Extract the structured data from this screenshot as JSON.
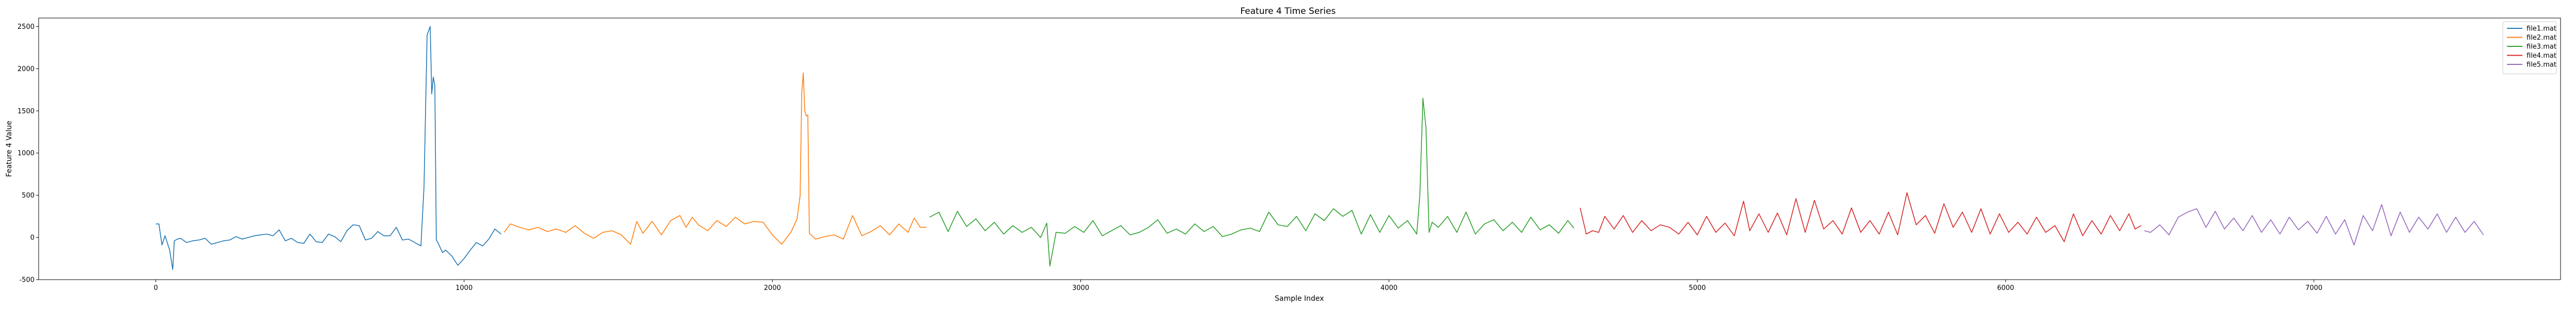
{
  "chart_data": {
    "type": "line",
    "title": "Feature 4 Time Series",
    "xlabel": "Sample Index",
    "ylabel": "Feature 4 Value",
    "xlim": [
      -380,
      7800
    ],
    "ylim": [
      -500,
      2600
    ],
    "xticks": [
      0,
      1000,
      2000,
      3000,
      4000,
      5000,
      6000,
      7000
    ],
    "yticks": [
      -500,
      0,
      500,
      1000,
      1500,
      2000,
      2500
    ],
    "grid": false,
    "legend_position": "top-right",
    "series": [
      {
        "name": "file1.mat",
        "color": "#1f77b4",
        "x": [
          0,
          10,
          20,
          30,
          45,
          55,
          60,
          70,
          80,
          100,
          120,
          140,
          160,
          180,
          200,
          220,
          240,
          260,
          280,
          300,
          320,
          340,
          360,
          380,
          400,
          420,
          440,
          460,
          480,
          500,
          520,
          540,
          560,
          580,
          600,
          620,
          640,
          660,
          680,
          700,
          720,
          740,
          760,
          780,
          800,
          820,
          840,
          860,
          870,
          880,
          890,
          895,
          900,
          905,
          910,
          915,
          920,
          930,
          940,
          960,
          980,
          1000,
          1020,
          1040,
          1060,
          1080,
          1100,
          1120
        ],
        "y": [
          160,
          160,
          -90,
          20,
          -150,
          -380,
          -40,
          -20,
          -10,
          -60,
          -40,
          -30,
          -10,
          -80,
          -60,
          -40,
          -30,
          10,
          -20,
          0,
          20,
          30,
          40,
          20,
          90,
          -40,
          -10,
          -60,
          -70,
          40,
          -50,
          -60,
          40,
          10,
          -50,
          80,
          150,
          140,
          -30,
          -10,
          70,
          20,
          20,
          120,
          -30,
          -20,
          -60,
          -100,
          600,
          2400,
          2500,
          1700,
          1900,
          1800,
          -30,
          -60,
          -100,
          -180,
          -150,
          -220,
          -330,
          -250,
          -150,
          -60,
          -100,
          -20,
          100,
          40
        ]
      },
      {
        "name": "file2.mat",
        "color": "#ff7f0e",
        "x": [
          1130,
          1150,
          1180,
          1210,
          1240,
          1270,
          1300,
          1330,
          1360,
          1390,
          1420,
          1450,
          1480,
          1510,
          1540,
          1560,
          1580,
          1610,
          1640,
          1670,
          1700,
          1720,
          1740,
          1760,
          1790,
          1820,
          1850,
          1880,
          1910,
          1940,
          1970,
          2000,
          2030,
          2060,
          2080,
          2090,
          2095,
          2100,
          2105,
          2110,
          2115,
          2120,
          2140,
          2170,
          2200,
          2230,
          2260,
          2290,
          2320,
          2350,
          2380,
          2410,
          2440,
          2460,
          2480,
          2500
        ],
        "y": [
          60,
          160,
          120,
          90,
          120,
          70,
          100,
          60,
          140,
          50,
          -10,
          60,
          80,
          30,
          -80,
          190,
          50,
          190,
          30,
          200,
          260,
          120,
          240,
          150,
          80,
          200,
          130,
          240,
          160,
          190,
          180,
          30,
          -80,
          60,
          220,
          500,
          1700,
          1950,
          1500,
          1440,
          1450,
          50,
          -20,
          10,
          30,
          -20,
          260,
          20,
          70,
          140,
          30,
          160,
          60,
          230,
          120,
          120
        ]
      },
      {
        "name": "file3.mat",
        "color": "#2ca02c",
        "x": [
          2510,
          2540,
          2570,
          2600,
          2630,
          2660,
          2690,
          2720,
          2750,
          2780,
          2810,
          2840,
          2870,
          2890,
          2900,
          2920,
          2950,
          2980,
          3010,
          3040,
          3070,
          3100,
          3130,
          3160,
          3190,
          3220,
          3250,
          3280,
          3310,
          3340,
          3370,
          3400,
          3430,
          3460,
          3490,
          3520,
          3550,
          3580,
          3610,
          3640,
          3670,
          3700,
          3730,
          3760,
          3790,
          3820,
          3850,
          3880,
          3910,
          3940,
          3970,
          4000,
          4030,
          4060,
          4090,
          4100,
          4110,
          4120,
          4130,
          4140,
          4160,
          4190,
          4220,
          4250,
          4280,
          4310,
          4340,
          4370,
          4400,
          4430,
          4460,
          4490,
          4520,
          4550,
          4580,
          4600
        ],
        "y": [
          240,
          300,
          70,
          310,
          130,
          220,
          80,
          180,
          40,
          140,
          60,
          120,
          0,
          170,
          -340,
          60,
          50,
          130,
          60,
          200,
          20,
          80,
          140,
          30,
          60,
          120,
          210,
          50,
          100,
          40,
          160,
          70,
          130,
          10,
          40,
          90,
          110,
          70,
          300,
          150,
          130,
          250,
          80,
          280,
          200,
          340,
          250,
          320,
          40,
          270,
          60,
          260,
          110,
          200,
          40,
          500,
          1650,
          1300,
          60,
          180,
          120,
          250,
          60,
          300,
          40,
          160,
          210,
          80,
          180,
          60,
          240,
          90,
          150,
          50,
          200,
          110
        ]
      },
      {
        "name": "file4.mat",
        "color": "#d62728",
        "x": [
          4620,
          4640,
          4660,
          4680,
          4700,
          4730,
          4760,
          4790,
          4820,
          4850,
          4880,
          4910,
          4940,
          4970,
          5000,
          5030,
          5060,
          5090,
          5120,
          5150,
          5170,
          5200,
          5230,
          5260,
          5290,
          5320,
          5350,
          5380,
          5410,
          5440,
          5470,
          5500,
          5530,
          5560,
          5590,
          5620,
          5650,
          5680,
          5710,
          5740,
          5770,
          5800,
          5830,
          5860,
          5890,
          5920,
          5950,
          5980,
          6010,
          6040,
          6070,
          6100,
          6130,
          6160,
          6190,
          6220,
          6250,
          6280,
          6310,
          6340,
          6370,
          6400,
          6420,
          6440
        ],
        "y": [
          350,
          40,
          80,
          60,
          250,
          100,
          260,
          60,
          200,
          80,
          150,
          120,
          40,
          180,
          30,
          250,
          60,
          170,
          20,
          430,
          80,
          280,
          60,
          290,
          30,
          460,
          60,
          440,
          100,
          200,
          40,
          350,
          60,
          200,
          40,
          300,
          30,
          530,
          150,
          260,
          50,
          400,
          120,
          300,
          60,
          340,
          40,
          280,
          60,
          180,
          40,
          240,
          60,
          140,
          -50,
          280,
          20,
          200,
          40,
          260,
          80,
          280,
          100,
          140
        ]
      },
      {
        "name": "file5.mat",
        "color": "#9467bd",
        "x": [
          6450,
          6470,
          6500,
          6530,
          6560,
          6590,
          6620,
          6650,
          6680,
          6710,
          6740,
          6770,
          6800,
          6830,
          6860,
          6890,
          6920,
          6950,
          6980,
          7010,
          7040,
          7070,
          7100,
          7130,
          7160,
          7190,
          7220,
          7250,
          7280,
          7310,
          7340,
          7370,
          7400,
          7430,
          7460,
          7490,
          7520,
          7550
        ],
        "y": [
          80,
          60,
          150,
          30,
          240,
          300,
          340,
          120,
          310,
          100,
          230,
          80,
          260,
          60,
          210,
          40,
          240,
          90,
          190,
          50,
          250,
          40,
          210,
          -90,
          260,
          80,
          390,
          20,
          300,
          60,
          240,
          100,
          280,
          60,
          240,
          60,
          190,
          30
        ]
      }
    ]
  }
}
